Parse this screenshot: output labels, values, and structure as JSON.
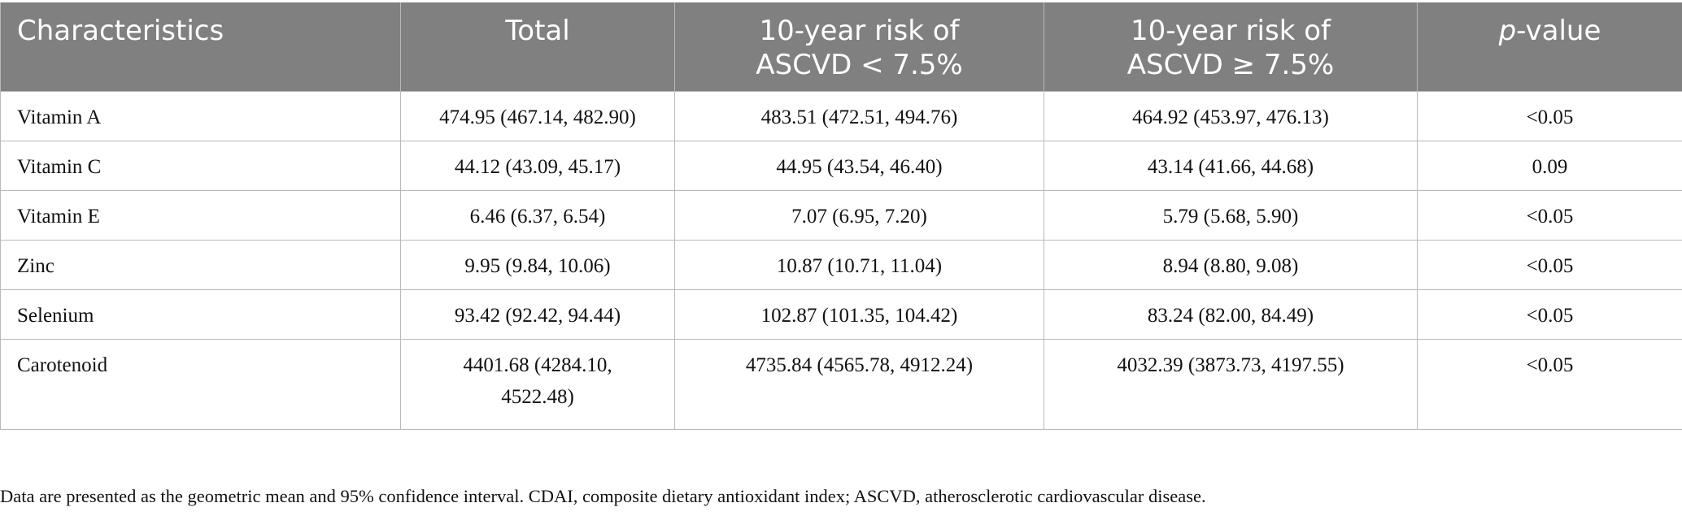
{
  "table": {
    "headers": {
      "characteristics": "Characteristics",
      "total": "Total",
      "low_line1": "10-year risk of",
      "low_line2": "ASCVD < 7.5%",
      "high_line1": "10-year risk of",
      "high_line2": "ASCVD ≥ 7.5%",
      "p_italic": "p",
      "p_rest": "-value"
    },
    "rows": [
      {
        "name": "Vitamin A",
        "total": "474.95 (467.14, 482.90)",
        "low": "483.51 (472.51, 494.76)",
        "high": "464.92 (453.97, 476.13)",
        "p": "<0.05"
      },
      {
        "name": "Vitamin C",
        "total": "44.12 (43.09, 45.17)",
        "low": "44.95 (43.54, 46.40)",
        "high": "43.14 (41.66, 44.68)",
        "p": "0.09"
      },
      {
        "name": "Vitamin E",
        "total": "6.46 (6.37, 6.54)",
        "low": "7.07 (6.95, 7.20)",
        "high": "5.79 (5.68, 5.90)",
        "p": "<0.05"
      },
      {
        "name": "Zinc",
        "total": "9.95 (9.84, 10.06)",
        "low": "10.87 (10.71, 11.04)",
        "high": "8.94 (8.80, 9.08)",
        "p": "<0.05"
      },
      {
        "name": "Selenium",
        "total": "93.42 (92.42, 94.44)",
        "low": "102.87 (101.35, 104.42)",
        "high": "83.24 (82.00, 84.49)",
        "p": "<0.05"
      },
      {
        "name": "Carotenoid",
        "total_line1": "4401.68 (4284.10,",
        "total_line2": "4522.48)",
        "low": "4735.84 (4565.78, 4912.24)",
        "high": "4032.39 (3873.73, 4197.55)",
        "p": "<0.05"
      }
    ]
  },
  "footnote": "Data are presented as the geometric mean and 95% confidence interval. CDAI, composite dietary antioxidant index; ASCVD, atherosclerotic cardiovascular disease."
}
